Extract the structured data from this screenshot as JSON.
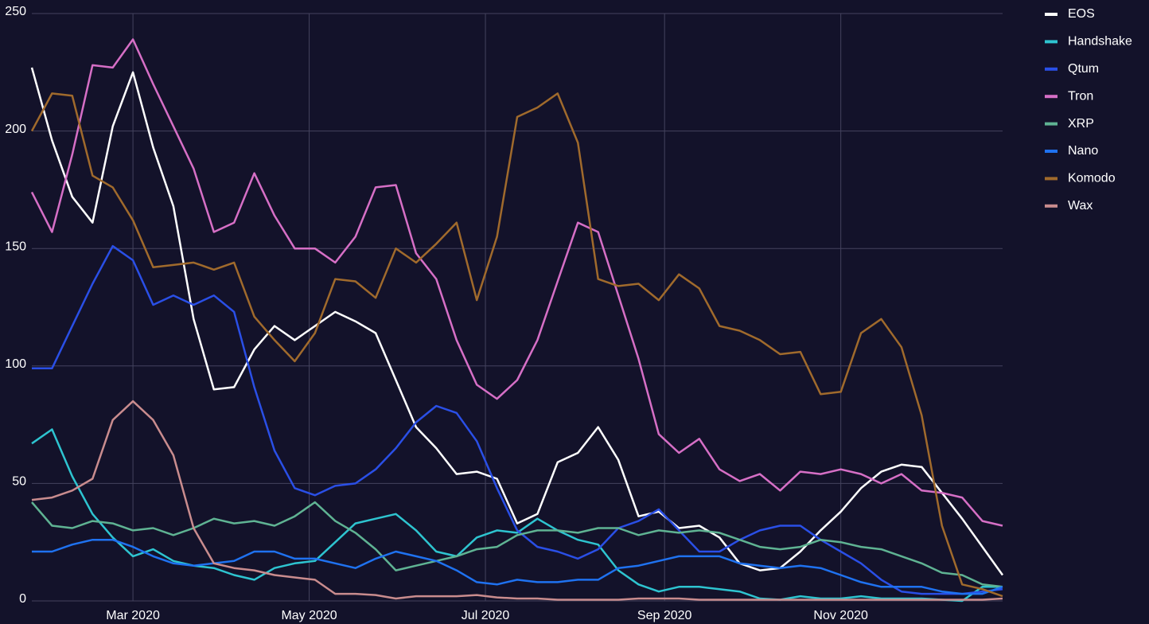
{
  "chart_data": {
    "type": "line",
    "x": [
      "2020-01-26",
      "2020-02-02",
      "2020-02-09",
      "2020-02-16",
      "2020-02-23",
      "2020-03-01",
      "2020-03-08",
      "2020-03-15",
      "2020-03-22",
      "2020-03-29",
      "2020-04-05",
      "2020-04-12",
      "2020-04-19",
      "2020-04-26",
      "2020-05-03",
      "2020-05-10",
      "2020-05-17",
      "2020-05-24",
      "2020-05-31",
      "2020-06-07",
      "2020-06-14",
      "2020-06-21",
      "2020-06-28",
      "2020-07-05",
      "2020-07-12",
      "2020-07-19",
      "2020-07-26",
      "2020-08-02",
      "2020-08-09",
      "2020-08-16",
      "2020-08-23",
      "2020-08-30",
      "2020-09-06",
      "2020-09-13",
      "2020-09-20",
      "2020-09-27",
      "2020-10-04",
      "2020-10-11",
      "2020-10-18",
      "2020-10-25",
      "2020-11-01",
      "2020-11-08",
      "2020-11-15",
      "2020-11-22",
      "2020-11-29",
      "2020-12-06",
      "2020-12-13",
      "2020-12-20",
      "2020-12-27"
    ],
    "series": [
      {
        "name": "EOS",
        "color": "#ffffff",
        "values": [
          227,
          196,
          172,
          161,
          202,
          225,
          193,
          168,
          120,
          90,
          91,
          107,
          117,
          111,
          117,
          123,
          119,
          114,
          94,
          74,
          65,
          54,
          55,
          52,
          33,
          37,
          59,
          63,
          74,
          60,
          36,
          38,
          31,
          32,
          27,
          16,
          13,
          14,
          21,
          30,
          38,
          48,
          55,
          58,
          57,
          46,
          35,
          23,
          11
        ]
      },
      {
        "name": "Handshake",
        "color": "#2ec4d0",
        "values": [
          67,
          73,
          53,
          37,
          27,
          19,
          22,
          17,
          15,
          14,
          11,
          9,
          14,
          16,
          17,
          25,
          33,
          35,
          37,
          30,
          21,
          19,
          27,
          30,
          29,
          35,
          30,
          26,
          24,
          13,
          7,
          4,
          6,
          6,
          5,
          4,
          1,
          0.5,
          2,
          1,
          1,
          2,
          1,
          1,
          1,
          0.5,
          0,
          6,
          6
        ]
      },
      {
        "name": "Qtum",
        "color": "#2a4fe6",
        "values": [
          99,
          99,
          117,
          135,
          151,
          145,
          126,
          130,
          126,
          130,
          123,
          91,
          64,
          48,
          45,
          49,
          50,
          56,
          65,
          76,
          83,
          80,
          68,
          48,
          30,
          23,
          21,
          18,
          22,
          31,
          34,
          39,
          30,
          21,
          21,
          26,
          30,
          32,
          32,
          26,
          21,
          16,
          9,
          4,
          3,
          3,
          3,
          4,
          5
        ]
      },
      {
        "name": "Tron",
        "color": "#d66fc6",
        "values": [
          174,
          157,
          190,
          228,
          227,
          239,
          220,
          202,
          184,
          157,
          161,
          182,
          164,
          150,
          150,
          144,
          155,
          176,
          177,
          148,
          137,
          111,
          92,
          86,
          94,
          111,
          136,
          161,
          157,
          130,
          103,
          71,
          63,
          69,
          56,
          51,
          54,
          47,
          55,
          54,
          56,
          54,
          50,
          54,
          47,
          46,
          44,
          34,
          32
        ]
      },
      {
        "name": "XRP",
        "color": "#5fb393",
        "values": [
          42,
          32,
          31,
          34,
          33,
          30,
          31,
          28,
          31,
          35,
          33,
          34,
          32,
          36,
          42,
          34,
          29,
          22,
          13,
          15,
          17,
          19,
          22,
          23,
          28,
          30,
          30,
          29,
          31,
          31,
          28,
          30,
          29,
          30,
          29,
          26,
          23,
          22,
          23,
          26,
          25,
          23,
          22,
          19,
          16,
          12,
          11,
          7,
          6
        ]
      },
      {
        "name": "Nano",
        "color": "#1f72f0",
        "values": [
          21,
          21,
          24,
          26,
          26,
          23,
          19,
          16,
          15,
          16,
          17,
          21,
          21,
          18,
          18,
          16,
          14,
          18,
          21,
          19,
          17,
          13,
          8,
          7,
          9,
          8,
          8,
          9,
          9,
          14,
          15,
          17,
          19,
          19,
          19,
          16,
          15,
          14,
          15,
          14,
          11,
          8,
          6,
          6,
          6,
          4,
          3,
          3,
          6
        ]
      },
      {
        "name": "Komodo",
        "color": "#a06a2c",
        "values": [
          200,
          216,
          215,
          181,
          176,
          162,
          142,
          143,
          144,
          141,
          144,
          121,
          111,
          102,
          114,
          137,
          136,
          129,
          150,
          144,
          152,
          161,
          128,
          155,
          206,
          210,
          216,
          195,
          137,
          134,
          135,
          128,
          139,
          133,
          117,
          115,
          111,
          105,
          106,
          88,
          89,
          114,
          120,
          108,
          79,
          32,
          7,
          5,
          2
        ]
      },
      {
        "name": "Wax",
        "color": "#c98c8e",
        "values": [
          43,
          44,
          47,
          52,
          77,
          85,
          77,
          62,
          31,
          16,
          14,
          13,
          11,
          10,
          9,
          3,
          3,
          2.5,
          1,
          2,
          2,
          2,
          2.5,
          1.5,
          1,
          1,
          0.5,
          0.5,
          0.5,
          0.5,
          1,
          1,
          1,
          0.5,
          0.5,
          0.5,
          0.5,
          0.5,
          0.5,
          0.5,
          0.5,
          0.5,
          0.5,
          0.5,
          0.5,
          0.5,
          0.5,
          0.5,
          1
        ]
      }
    ],
    "xlim": [
      "2020-01-26",
      "2020-12-27"
    ],
    "xticks": [
      {
        "value": "2020-03-01",
        "label": "Mar 2020"
      },
      {
        "value": "2020-05-01",
        "label": "May 2020"
      },
      {
        "value": "2020-07-01",
        "label": "Jul 2020"
      },
      {
        "value": "2020-09-01",
        "label": "Sep 2020"
      },
      {
        "value": "2020-11-01",
        "label": "Nov 2020"
      }
    ],
    "ylim": [
      0,
      250
    ],
    "yticks": [
      0,
      50,
      100,
      150,
      200,
      250
    ],
    "grid": true,
    "legend": "right"
  }
}
